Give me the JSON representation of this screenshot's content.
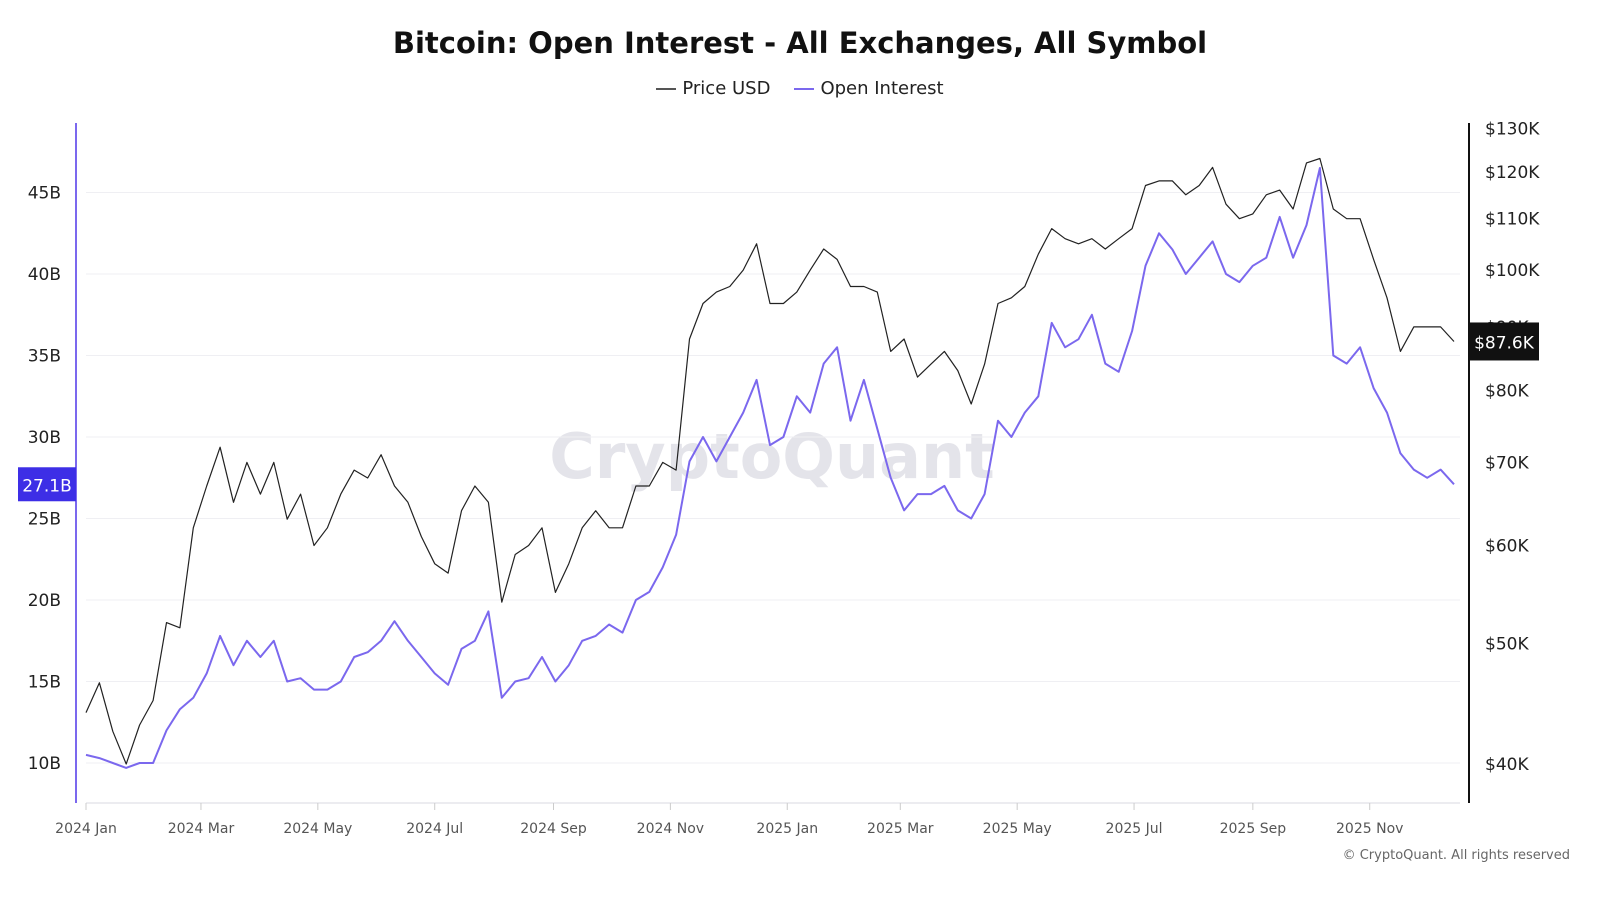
{
  "chart_data": {
    "type": "line",
    "title": "Bitcoin: Open Interest - All Exchanges, All Symbol",
    "legend_position": "top",
    "grid": true,
    "watermark": "CryptoQuant",
    "footer": "© CryptoQuant. All rights reserved",
    "x_ticks": [
      {
        "date": "2024-01-01",
        "label": "2024 Jan"
      },
      {
        "date": "2024-03-01",
        "label": "2024 Mar"
      },
      {
        "date": "2024-05-01",
        "label": "2024 May"
      },
      {
        "date": "2024-07-01",
        "label": "2024 Jul"
      },
      {
        "date": "2024-09-01",
        "label": "2024 Sep"
      },
      {
        "date": "2024-11-01",
        "label": "2024 Nov"
      },
      {
        "date": "2025-01-01",
        "label": "2025 Jan"
      },
      {
        "date": "2025-03-01",
        "label": "2025 Mar"
      },
      {
        "date": "2025-05-01",
        "label": "2025 May"
      },
      {
        "date": "2025-07-01",
        "label": "2025 Jul"
      },
      {
        "date": "2025-09-01",
        "label": "2025 Sep"
      },
      {
        "date": "2025-11-01",
        "label": "2025 Nov"
      }
    ],
    "left_axis": {
      "scale": "linear",
      "ylim": [
        7.5,
        49.2
      ],
      "ticks": [
        10,
        15,
        20,
        25,
        30,
        35,
        40,
        45
      ],
      "tick_labels": [
        "10B",
        "15B",
        "20B",
        "25B",
        "30B",
        "35B",
        "40B",
        "45B"
      ],
      "current_label": "27.1B",
      "color": "#7b68ee",
      "badge_color": "#3d2ee6"
    },
    "right_axis": {
      "scale": "log",
      "ticks": [
        40,
        50,
        60,
        70,
        80,
        90,
        100,
        110,
        120,
        130
      ],
      "tick_labels": [
        "$40K",
        "$50K",
        "$60K",
        "$70K",
        "$80K",
        "$90K",
        "$100K",
        "$110K",
        "$120K",
        "$130K"
      ],
      "current_label": "$87.6K",
      "color": "#111111"
    },
    "x": [
      "2024-01-01",
      "2024-01-08",
      "2024-01-15",
      "2024-01-22",
      "2024-01-29",
      "2024-02-05",
      "2024-02-12",
      "2024-02-19",
      "2024-02-26",
      "2024-03-04",
      "2024-03-11",
      "2024-03-18",
      "2024-03-25",
      "2024-04-01",
      "2024-04-08",
      "2024-04-15",
      "2024-04-22",
      "2024-04-29",
      "2024-05-06",
      "2024-05-13",
      "2024-05-20",
      "2024-05-27",
      "2024-06-03",
      "2024-06-10",
      "2024-06-17",
      "2024-06-24",
      "2024-07-01",
      "2024-07-08",
      "2024-07-15",
      "2024-07-22",
      "2024-07-29",
      "2024-08-05",
      "2024-08-12",
      "2024-08-19",
      "2024-08-26",
      "2024-09-02",
      "2024-09-09",
      "2024-09-16",
      "2024-09-23",
      "2024-09-30",
      "2024-10-07",
      "2024-10-14",
      "2024-10-21",
      "2024-10-28",
      "2024-11-04",
      "2024-11-11",
      "2024-11-18",
      "2024-11-25",
      "2024-12-02",
      "2024-12-09",
      "2024-12-16",
      "2024-12-23",
      "2024-12-30",
      "2025-01-06",
      "2025-01-13",
      "2025-01-20",
      "2025-01-27",
      "2025-02-03",
      "2025-02-10",
      "2025-02-17",
      "2025-02-24",
      "2025-03-03",
      "2025-03-10",
      "2025-03-17",
      "2025-03-24",
      "2025-03-31",
      "2025-04-07",
      "2025-04-14",
      "2025-04-21",
      "2025-04-28",
      "2025-05-05",
      "2025-05-12",
      "2025-05-19",
      "2025-05-26",
      "2025-06-02",
      "2025-06-09",
      "2025-06-16",
      "2025-06-23",
      "2025-06-30",
      "2025-07-07",
      "2025-07-14",
      "2025-07-21",
      "2025-07-28",
      "2025-08-04",
      "2025-08-11",
      "2025-08-18",
      "2025-08-25",
      "2025-09-01",
      "2025-09-08",
      "2025-09-15",
      "2025-09-22",
      "2025-09-29",
      "2025-10-06",
      "2025-10-13",
      "2025-10-20",
      "2025-10-27",
      "2025-11-03",
      "2025-11-10",
      "2025-11-17",
      "2025-11-24",
      "2025-12-01",
      "2025-12-08",
      "2025-12-15"
    ],
    "series": [
      {
        "name": "Price USD",
        "axis": "right",
        "unit": "K USD",
        "color": "#222222",
        "values": [
          44,
          46.5,
          42.5,
          40,
          43,
          45,
          52,
          51.5,
          62,
          67,
          72,
          65,
          70,
          66,
          70,
          63,
          66,
          60,
          62,
          66,
          69,
          68,
          71,
          67,
          65,
          61,
          58,
          57,
          64,
          67,
          65,
          54,
          59,
          60,
          62,
          55,
          58,
          62,
          64,
          62,
          62,
          67,
          67,
          70,
          69,
          88,
          94,
          96,
          97,
          100,
          105,
          94,
          94,
          96,
          100,
          104,
          102,
          97,
          97,
          96,
          86,
          88,
          82,
          84,
          86,
          83,
          78,
          84,
          94,
          95,
          97,
          103,
          108,
          106,
          105,
          106,
          104,
          106,
          108,
          117,
          118,
          118,
          115,
          117,
          121,
          113,
          110,
          111,
          115,
          116,
          112,
          122,
          123,
          112,
          110,
          110,
          102,
          95,
          86,
          90,
          90,
          90,
          87.6
        ]
      },
      {
        "name": "Open Interest",
        "axis": "left",
        "unit": "B USD",
        "color": "#7b68ee",
        "values": [
          10.5,
          10.3,
          10,
          9.7,
          10,
          10,
          12,
          13.3,
          14,
          15.5,
          17.8,
          16,
          17.5,
          16.5,
          17.5,
          15,
          15.2,
          14.5,
          14.5,
          15,
          16.5,
          16.8,
          17.5,
          18.7,
          17.5,
          16.5,
          15.5,
          14.8,
          17,
          17.5,
          19.3,
          14,
          15,
          15.2,
          16.5,
          15,
          16,
          17.5,
          17.8,
          18.5,
          18,
          20,
          20.5,
          22,
          24,
          28.5,
          30,
          28.5,
          30,
          31.5,
          33.5,
          29.5,
          30,
          32.5,
          31.5,
          34.5,
          35.5,
          31,
          33.5,
          30.5,
          27.5,
          25.5,
          26.5,
          26.5,
          27,
          25.5,
          25,
          26.5,
          31,
          30,
          31.5,
          32.5,
          37,
          35.5,
          36,
          37.5,
          34.5,
          34,
          36.5,
          40.5,
          42.5,
          41.5,
          40,
          41,
          42,
          40,
          39.5,
          40.5,
          41,
          43.5,
          41,
          43,
          46.5,
          35,
          34.5,
          35.5,
          33,
          31.5,
          29,
          28,
          27.5,
          28,
          27.1
        ]
      }
    ]
  }
}
